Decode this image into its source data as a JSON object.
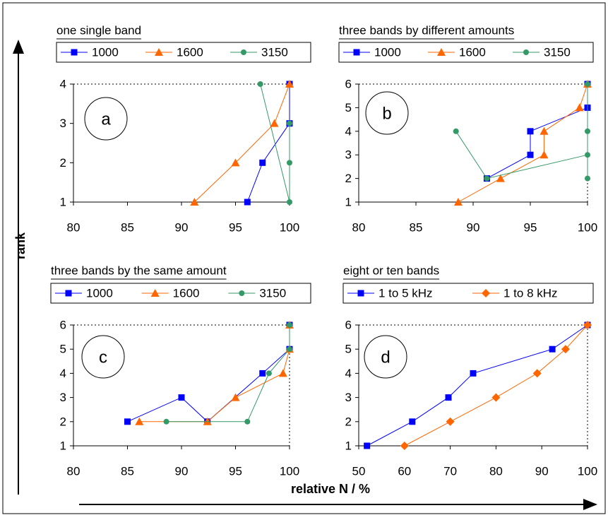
{
  "ylabel": "rank",
  "xlabel": "relative N / %",
  "chart_data": [
    {
      "type": "line",
      "title": "one single band",
      "annotation": "a",
      "xlim": [
        80,
        100
      ],
      "xticks": [
        80,
        85,
        90,
        95,
        100
      ],
      "ylim": [
        1,
        4
      ],
      "yticks": [
        1,
        2,
        3,
        4
      ],
      "series": [
        {
          "name": "1000",
          "color": "#0000ff",
          "marker": "square",
          "x": [
            96.1,
            97.5,
            100,
            100
          ],
          "values": [
            1,
            2,
            3,
            4
          ]
        },
        {
          "name": "1600",
          "color": "#ff6600",
          "marker": "triangle",
          "x": [
            91.2,
            95,
            98.6,
            100
          ],
          "values": [
            1,
            2,
            3,
            4
          ]
        },
        {
          "name": "3150",
          "color": "#339966",
          "marker": "circle",
          "x": [
            97.3,
            100,
            100,
            100
          ],
          "values": [
            4,
            1,
            2,
            3
          ]
        }
      ]
    },
    {
      "type": "line",
      "title": "three bands by different amounts",
      "annotation": "b",
      "xlim": [
        80,
        100
      ],
      "xticks": [
        80,
        85,
        90,
        95,
        100
      ],
      "ylim": [
        1,
        6
      ],
      "yticks": [
        1,
        2,
        3,
        4,
        5,
        6
      ],
      "series": [
        {
          "name": "1000",
          "color": "#0000ff",
          "marker": "square",
          "x": [
            91.2,
            95,
            95,
            100,
            100
          ],
          "values": [
            2,
            3,
            4,
            5,
            6
          ]
        },
        {
          "name": "1600",
          "color": "#ff6600",
          "marker": "triangle",
          "x": [
            88.7,
            92.4,
            96.2,
            96.2,
            99.3,
            100
          ],
          "values": [
            1,
            2,
            3,
            4,
            5,
            6
          ]
        },
        {
          "name": "3150",
          "color": "#339966",
          "marker": "circle",
          "x": [
            88.5,
            91.2,
            100,
            100,
            100,
            100
          ],
          "values": [
            4,
            2,
            3,
            2,
            4,
            6
          ]
        }
      ]
    },
    {
      "type": "line",
      "title": "three bands by the same amount",
      "annotation": "c",
      "xlim": [
        80,
        100
      ],
      "xticks": [
        80,
        85,
        90,
        95,
        100
      ],
      "ylim": [
        1,
        6
      ],
      "yticks": [
        1,
        2,
        3,
        4,
        5,
        6
      ],
      "series": [
        {
          "name": "1000",
          "color": "#0000ff",
          "marker": "square",
          "x": [
            85,
            90,
            92.4,
            97.5,
            100,
            100
          ],
          "values": [
            2,
            3,
            2,
            4,
            5,
            6
          ]
        },
        {
          "name": "1600",
          "color": "#ff6600",
          "marker": "triangle",
          "x": [
            86.1,
            92.4,
            95,
            99.4,
            100,
            100
          ],
          "values": [
            2,
            2,
            3,
            4,
            5,
            6
          ]
        },
        {
          "name": "3150",
          "color": "#339966",
          "marker": "circle",
          "x": [
            88.6,
            96.1,
            98.1,
            100,
            100
          ],
          "values": [
            2,
            2,
            4,
            5,
            6
          ]
        }
      ]
    },
    {
      "type": "line",
      "title": "eight or ten bands",
      "annotation": "d",
      "xlim": [
        50,
        100
      ],
      "xticks": [
        50,
        60,
        70,
        80,
        90,
        100
      ],
      "ylim": [
        1,
        6
      ],
      "yticks": [
        1,
        2,
        3,
        4,
        5,
        6
      ],
      "series": [
        {
          "name": "1 to 5 kHz",
          "color": "#0000ff",
          "marker": "square",
          "x": [
            51.8,
            61.7,
            69.6,
            75,
            92.3,
            100
          ],
          "values": [
            1,
            2,
            3,
            4,
            5,
            6
          ]
        },
        {
          "name": "1 to 8 kHz",
          "color": "#ff6600",
          "marker": "diamond",
          "x": [
            60,
            70,
            80,
            89,
            95.2,
            100
          ],
          "values": [
            1,
            2,
            3,
            4,
            5,
            6
          ]
        }
      ]
    }
  ]
}
